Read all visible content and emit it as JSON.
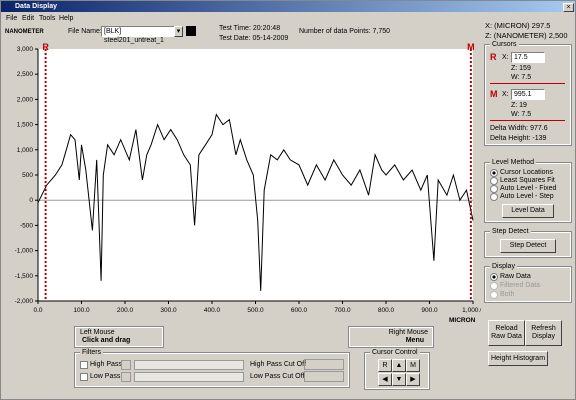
{
  "window": {
    "title": "Data Display",
    "menu": [
      "File",
      "Edit",
      "Tools",
      "Help"
    ]
  },
  "header": {
    "file_label": "File Name:",
    "file_name": "[BLK] steel201_untreat_1",
    "test_time": "Test Time: 20:20:48",
    "test_date": "Test Date: 05-14-2009",
    "points": "Number of data Points: 7,750",
    "x_readout": "X: (MICRON) 297.5",
    "z_readout": "Z: (NANOMETER) 2,500"
  },
  "chart_data": {
    "type": "line",
    "ylabel": "NANOMETER",
    "xlabel": "MICRON",
    "x": [
      0,
      20,
      40,
      55,
      65,
      75,
      85,
      95,
      100,
      110,
      125,
      135,
      145,
      150,
      160,
      175,
      190,
      210,
      225,
      240,
      250,
      260,
      275,
      290,
      305,
      320,
      335,
      350,
      360,
      370,
      385,
      400,
      410,
      425,
      440,
      455,
      465,
      480,
      495,
      505,
      512,
      520,
      535,
      550,
      565,
      580,
      600,
      620,
      640,
      660,
      680,
      700,
      720,
      740,
      760,
      775,
      790,
      800,
      820,
      840,
      860,
      880,
      895,
      910,
      920,
      940,
      955,
      970,
      985,
      1000
    ],
    "series": [
      {
        "name": "Raw Data",
        "color": "#000000",
        "values": [
          -50,
          300,
          500,
          700,
          1000,
          1300,
          1200,
          400,
          1100,
          600,
          -600,
          800,
          -1600,
          500,
          1100,
          900,
          1200,
          800,
          1400,
          400,
          900,
          1100,
          1500,
          1200,
          1400,
          1200,
          900,
          700,
          -500,
          900,
          1100,
          1300,
          1700,
          1500,
          1600,
          900,
          1200,
          800,
          500,
          -400,
          -1800,
          200,
          900,
          800,
          1000,
          800,
          700,
          300,
          700,
          400,
          800,
          500,
          300,
          600,
          100,
          900,
          600,
          500,
          700,
          400,
          600,
          200,
          500,
          -1200,
          400,
          100,
          500,
          0,
          200,
          -400
        ]
      }
    ],
    "xlim": [
      0,
      1000
    ],
    "ylim": [
      -2000,
      3000
    ],
    "xticks": [
      {
        "value": 0,
        "label": "0.0"
      },
      {
        "value": 100,
        "label": "100.0"
      },
      {
        "value": 200,
        "label": "200.0"
      },
      {
        "value": 300,
        "label": "300.0"
      },
      {
        "value": 400,
        "label": "400.0"
      },
      {
        "value": 500,
        "label": "500.0"
      },
      {
        "value": 600,
        "label": "600.0"
      },
      {
        "value": 700,
        "label": "700.0"
      },
      {
        "value": 800,
        "label": "800.0"
      },
      {
        "value": 900,
        "label": "900.0"
      },
      {
        "value": 1000,
        "label": "1,000.0"
      }
    ],
    "yticks": [
      {
        "value": -2000,
        "label": "-2,000"
      },
      {
        "value": -1500,
        "label": "-1,500"
      },
      {
        "value": -1000,
        "label": "-1,000"
      },
      -500,
      0,
      500,
      {
        "value": 1000,
        "label": "1,000"
      },
      {
        "value": 1500,
        "label": "1,500"
      },
      {
        "value": 2000,
        "label": "2,000"
      },
      {
        "value": 2500,
        "label": "2,500"
      },
      {
        "value": 3000,
        "label": "3,000"
      }
    ],
    "cursors": [
      {
        "label": "R",
        "x": 17.5,
        "color": "#c00000"
      },
      {
        "label": "M",
        "x": 995.1,
        "color": "#c00000"
      }
    ]
  },
  "cursors_panel": {
    "title": "Cursors",
    "r_x_label": "X:",
    "r_z": "Z: 159",
    "r_w": "W: 7.5",
    "m_x_label": "X:",
    "m_z": "Z: 19",
    "m_w": "W: 7.5",
    "delta_width": "Delta Width: 977.6",
    "delta_height": "Delta Height: -139"
  },
  "level_method": {
    "title": "Level Method",
    "options": [
      "Cursor Locations",
      "Least Squares Fit",
      "Auto Level - Fixed",
      "Auto Level - Step"
    ],
    "button": "Level Data"
  },
  "step_detect": {
    "title": "Step Detect",
    "button": "Step Detect"
  },
  "display": {
    "title": "Display",
    "options": [
      "Raw Data",
      "Filtered Data",
      "Both"
    ]
  },
  "buttons": {
    "reload": "Reload Raw Data",
    "refresh": "Refresh Display",
    "histogram": "Height Histogram"
  },
  "mouse": {
    "left_title": "Left Mouse",
    "left_action": "Click and drag",
    "right_title": "Right Mouse",
    "right_action": "Menu"
  },
  "filters": {
    "title": "Filters",
    "high_pass": "High Pass",
    "low_pass": "Low Pass",
    "high_cut": "High Pass Cut Off",
    "low_cut": "Low Pass Cut Off"
  },
  "cursor_control": {
    "title": "Cursor Control",
    "r": "R",
    "m": "M"
  }
}
